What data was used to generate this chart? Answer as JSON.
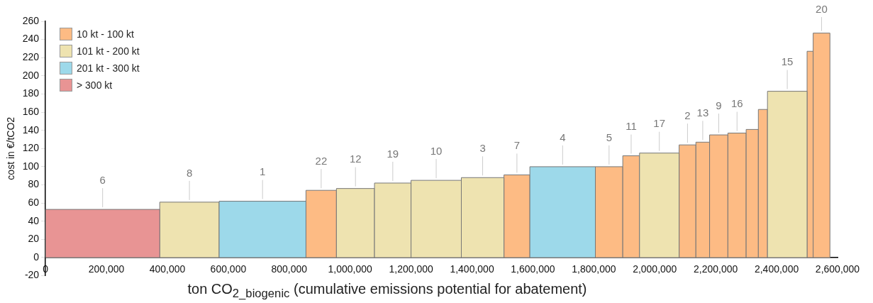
{
  "chart_data": {
    "type": "histogram",
    "ylabel": "cost in €/tCO2",
    "xlabel": "ton CO$_{2_biogenic}$ (cumulative emissions potential for abatement)",
    "bins": [
      0,
      375000,
      570000,
      855000,
      955000,
      1080000,
      1200000,
      1365000,
      1505000,
      1590000,
      1805000,
      1895000,
      1950000,
      2080000,
      2135000,
      2180000,
      2240000,
      2300000,
      2340000,
      2370000,
      2500000,
      2520000,
      2575000
    ],
    "series": [
      {
        "name": "10 kt - 100 kt",
        "color": "#fdbb84",
        "values": [
          null,
          null,
          null,
          74,
          null,
          null,
          null,
          null,
          91,
          null,
          100,
          112,
          null,
          124,
          127,
          135,
          137,
          141,
          163,
          null,
          227,
          247
        ]
      },
      {
        "name": "101 kt - 200 kt",
        "color": "#eee3b0",
        "values": [
          null,
          61,
          null,
          null,
          76,
          82,
          85,
          88,
          null,
          null,
          null,
          null,
          115,
          null,
          null,
          null,
          null,
          null,
          null,
          183,
          null,
          null
        ]
      },
      {
        "name": "201 kt - 300 kt",
        "color": "#9dd9ea",
        "values": [
          null,
          null,
          62,
          null,
          null,
          null,
          null,
          null,
          null,
          100,
          null,
          null,
          null,
          null,
          null,
          null,
          null,
          null,
          null,
          null,
          null,
          null
        ]
      },
      {
        "name": "> 300 kt",
        "color": "#e89494",
        "values": [
          53,
          null,
          null,
          null,
          null,
          null,
          null,
          null,
          null,
          null,
          null,
          null,
          null,
          null,
          null,
          null,
          null,
          null,
          null,
          null,
          null,
          null
        ]
      }
    ],
    "annotations": [
      {
        "text": "6",
        "x": 187500,
        "y": 53
      },
      {
        "text": "8",
        "x": 472500,
        "y": 61
      },
      {
        "text": "1",
        "x": 712500,
        "y": 62
      },
      {
        "text": "22",
        "x": 905000,
        "y": 74
      },
      {
        "text": "12",
        "x": 1017500,
        "y": 76
      },
      {
        "text": "19",
        "x": 1140000,
        "y": 82
      },
      {
        "text": "10",
        "x": 1282500,
        "y": 85
      },
      {
        "text": "3",
        "x": 1435000,
        "y": 88
      },
      {
        "text": "7",
        "x": 1547500,
        "y": 91
      },
      {
        "text": "4",
        "x": 1697500,
        "y": 100
      },
      {
        "text": "5",
        "x": 1850000,
        "y": 100
      },
      {
        "text": "11",
        "x": 1922500,
        "y": 112
      },
      {
        "text": "17",
        "x": 2015000,
        "y": 115
      },
      {
        "text": "2",
        "x": 2107500,
        "y": 124
      },
      {
        "text": "13",
        "x": 2157500,
        "y": 127
      },
      {
        "text": "9",
        "x": 2210000,
        "y": 135
      },
      {
        "text": "16",
        "x": 2270000,
        "y": 137
      },
      {
        "text": "15",
        "x": 2435000,
        "y": 183
      },
      {
        "text": "20",
        "x": 2547500,
        "y": 247
      }
    ],
    "xlim": [
      0,
      2600000
    ],
    "xticks": [
      0,
      {
        "value": 200000,
        "label": "200,000"
      },
      {
        "value": 400000,
        "label": "400,000"
      },
      {
        "value": 600000,
        "label": "600,000"
      },
      {
        "value": 800000,
        "label": "800,000"
      },
      {
        "value": 1000000,
        "label": "1,000,000"
      },
      {
        "value": 1200000,
        "label": "1,200,000"
      },
      {
        "value": 1400000,
        "label": "1,400,000"
      },
      {
        "value": 1600000,
        "label": "1,600,000"
      },
      {
        "value": 1800000,
        "label": "1,800,000"
      },
      {
        "value": 2000000,
        "label": "2,000,000"
      },
      {
        "value": 2200000,
        "label": "2,200,000"
      },
      {
        "value": 2400000,
        "label": "2,400,000"
      },
      {
        "value": 2600000,
        "label": "2,600,000"
      }
    ],
    "ylim": [
      -20,
      260
    ],
    "yticks": [
      -20,
      0,
      20,
      40,
      60,
      80,
      100,
      120,
      140,
      160,
      180,
      200,
      220,
      240,
      260
    ],
    "grid": false,
    "legend": "top left"
  }
}
